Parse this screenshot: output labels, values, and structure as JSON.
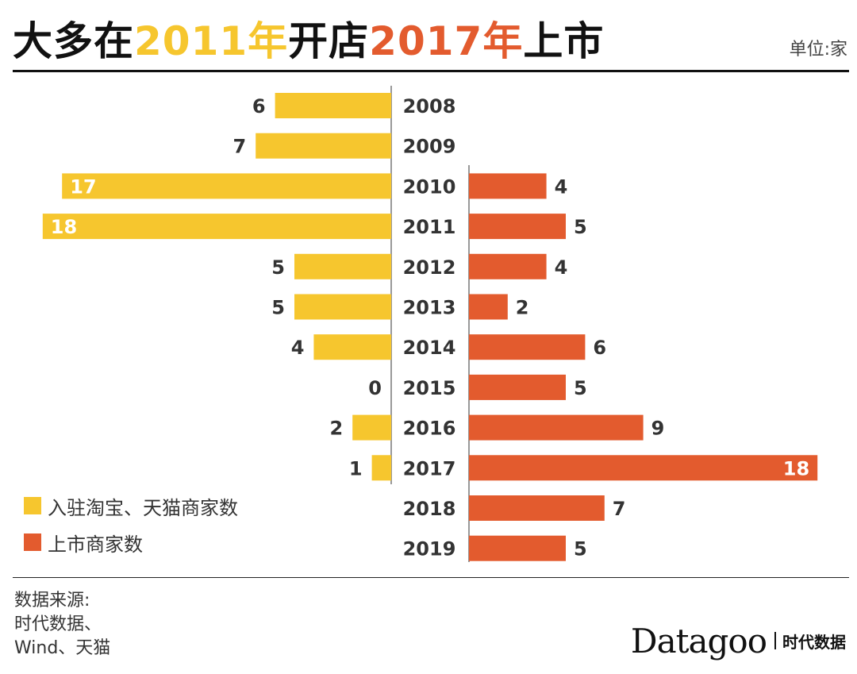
{
  "header": {
    "title_part1": "大多在",
    "title_year1": "2011年",
    "title_part2": "开店",
    "title_year2": "2017年",
    "title_part3": "上市",
    "unit": "单位:家"
  },
  "colors": {
    "yellow": "#F6C62E",
    "orange": "#E35B2E"
  },
  "legend": [
    {
      "label": "入驻淘宝、天猫商家数",
      "color": "#F6C62E"
    },
    {
      "label": "上市商家数",
      "color": "#E35B2E"
    }
  ],
  "chart_data": {
    "type": "bar",
    "orientation": "horizontal-diverging",
    "categories": [
      "2008",
      "2009",
      "2010",
      "2011",
      "2012",
      "2013",
      "2014",
      "2015",
      "2016",
      "2017",
      "2018",
      "2019"
    ],
    "series": [
      {
        "name": "入驻淘宝、天猫商家数",
        "side": "left",
        "values": [
          6,
          7,
          17,
          18,
          5,
          5,
          4,
          0,
          2,
          1,
          null,
          null
        ]
      },
      {
        "name": "上市商家数",
        "side": "right",
        "values": [
          null,
          null,
          4,
          5,
          4,
          2,
          6,
          5,
          9,
          18,
          7,
          5
        ]
      }
    ],
    "xlim": [
      0,
      18
    ],
    "grid": false,
    "legend_position": "bottom-left"
  },
  "source": {
    "lines": [
      "数据来源:",
      "时代数据、",
      "Wind、天猫"
    ]
  },
  "brand": {
    "name": "Datagoo",
    "sub": "时代数据"
  }
}
